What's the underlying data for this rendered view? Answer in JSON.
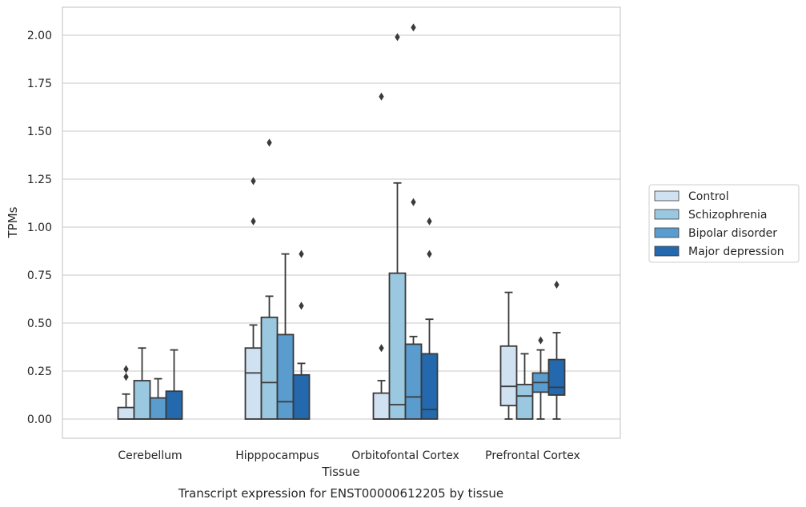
{
  "caption": "Transcript expression for ENST00000612205 by tissue",
  "chart_data": {
    "type": "box",
    "title": "",
    "xlabel": "Tissue",
    "ylabel": "TPMs",
    "ylim": [
      -0.1,
      2.15
    ],
    "yticks": [
      0.0,
      0.25,
      0.5,
      0.75,
      1.0,
      1.25,
      1.5,
      1.75,
      2.0
    ],
    "ytick_labels": [
      "0.00",
      "0.25",
      "0.50",
      "0.75",
      "1.00",
      "1.25",
      "1.50",
      "1.75",
      "2.00"
    ],
    "grid": "horizontal",
    "legend_position": "right",
    "categories": [
      "Cerebellum",
      "Hipppocampus",
      "Orbitofontal Cortex",
      "Prefrontal Cortex"
    ],
    "series": [
      {
        "name": "Control",
        "color": "#d0e1f2",
        "boxes": [
          {
            "whislo": 0.0,
            "q1": 0.0,
            "med": 0.0,
            "q3": 0.06,
            "whishi": 0.13,
            "fliers": [
              0.22,
              0.26
            ]
          },
          {
            "whislo": 0.0,
            "q1": 0.0,
            "med": 0.24,
            "q3": 0.37,
            "whishi": 0.49,
            "fliers": [
              1.03,
              1.24
            ]
          },
          {
            "whislo": 0.0,
            "q1": 0.0,
            "med": 0.0,
            "q3": 0.135,
            "whishi": 0.2,
            "fliers": [
              0.37,
              1.68
            ]
          },
          {
            "whislo": 0.0,
            "q1": 0.07,
            "med": 0.17,
            "q3": 0.38,
            "whishi": 0.66,
            "fliers": []
          }
        ]
      },
      {
        "name": "Schizophrenia",
        "color": "#9ac8e0",
        "boxes": [
          {
            "whislo": 0.0,
            "q1": 0.0,
            "med": 0.0,
            "q3": 0.2,
            "whishi": 0.37,
            "fliers": []
          },
          {
            "whislo": 0.0,
            "q1": 0.0,
            "med": 0.19,
            "q3": 0.53,
            "whishi": 0.64,
            "fliers": [
              1.44
            ]
          },
          {
            "whislo": 0.0,
            "q1": 0.0,
            "med": 0.075,
            "q3": 0.76,
            "whishi": 1.23,
            "fliers": [
              1.99
            ]
          },
          {
            "whislo": 0.0,
            "q1": 0.0,
            "med": 0.12,
            "q3": 0.18,
            "whishi": 0.34,
            "fliers": []
          }
        ]
      },
      {
        "name": "Bipolar disorder",
        "color": "#5a9ccd",
        "boxes": [
          {
            "whislo": 0.0,
            "q1": 0.0,
            "med": 0.0,
            "q3": 0.11,
            "whishi": 0.21,
            "fliers": []
          },
          {
            "whislo": 0.0,
            "q1": 0.0,
            "med": 0.09,
            "q3": 0.44,
            "whishi": 0.86,
            "fliers": []
          },
          {
            "whislo": 0.0,
            "q1": 0.0,
            "med": 0.115,
            "q3": 0.39,
            "whishi": 0.43,
            "fliers": [
              1.13,
              2.04
            ]
          },
          {
            "whislo": 0.0,
            "q1": 0.14,
            "med": 0.19,
            "q3": 0.24,
            "whishi": 0.36,
            "fliers": [
              0.41
            ]
          }
        ]
      },
      {
        "name": "Major depression",
        "color": "#2469ad",
        "boxes": [
          {
            "whislo": 0.0,
            "q1": 0.0,
            "med": 0.0,
            "q3": 0.145,
            "whishi": 0.36,
            "fliers": []
          },
          {
            "whislo": 0.0,
            "q1": 0.0,
            "med": 0.0,
            "q3": 0.23,
            "whishi": 0.29,
            "fliers": [
              0.59,
              0.86
            ]
          },
          {
            "whislo": 0.0,
            "q1": 0.0,
            "med": 0.05,
            "q3": 0.34,
            "whishi": 0.52,
            "fliers": [
              0.86,
              1.03
            ]
          },
          {
            "whislo": 0.0,
            "q1": 0.125,
            "med": 0.165,
            "q3": 0.31,
            "whishi": 0.45,
            "fliers": [
              0.7
            ]
          }
        ]
      }
    ]
  }
}
